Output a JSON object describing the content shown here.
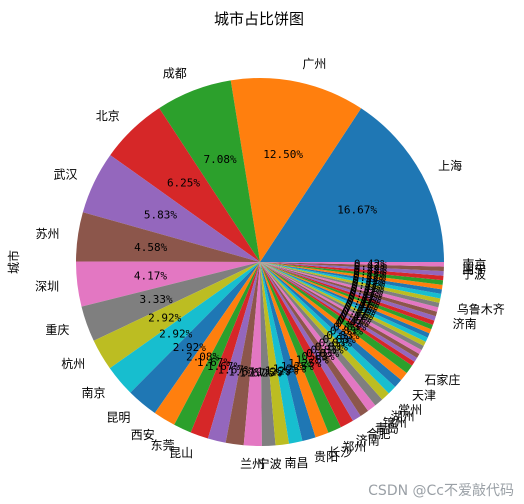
{
  "chart_data": {
    "type": "pie",
    "title": "城市占比饼图",
    "ylabel": "城市",
    "autopct_format": "%.2f%%",
    "start_angle_deg": 0,
    "direction": "counterclockwise",
    "slices": [
      {
        "label": "上海",
        "pct": 16.67,
        "color": "#1f77b4"
      },
      {
        "label": "广州",
        "pct": 12.5,
        "color": "#ff7f0e"
      },
      {
        "label": "成都",
        "pct": 7.08,
        "color": "#2ca02c"
      },
      {
        "label": "北京",
        "pct": 6.25,
        "color": "#d62728"
      },
      {
        "label": "武汉",
        "pct": 5.83,
        "color": "#9467bd"
      },
      {
        "label": "苏州",
        "pct": 4.58,
        "color": "#8c564b"
      },
      {
        "label": "深圳",
        "pct": 4.17,
        "color": "#e377c2"
      },
      {
        "label": "重庆",
        "pct": 3.33,
        "color": "#7f7f7f"
      },
      {
        "label": "杭州",
        "pct": 2.92,
        "color": "#bcbd22"
      },
      {
        "label": "南京",
        "pct": 2.92,
        "color": "#17becf"
      },
      {
        "label": "昆明",
        "pct": 2.92,
        "color": "#1f77b4"
      },
      {
        "label": "西安",
        "pct": 2.08,
        "color": "#ff7f0e"
      },
      {
        "label": "东莞",
        "pct": 1.67,
        "color": "#2ca02c"
      },
      {
        "label": "昆山",
        "pct": 1.67,
        "color": "#d62728"
      },
      {
        "label": "",
        "pct": 1.67,
        "color": "#9467bd"
      },
      {
        "label": "",
        "pct": 1.67,
        "color": "#8c564b"
      },
      {
        "label": "兰州",
        "pct": 1.67,
        "color": "#e377c2"
      },
      {
        "label": "宁波",
        "pct": 1.25,
        "color": "#7f7f7f"
      },
      {
        "label": "南昌",
        "pct": 1.25,
        "color": "#bcbd22"
      },
      {
        "label": "",
        "pct": 1.25,
        "color": "#17becf"
      },
      {
        "label": "贵阳",
        "pct": 1.25,
        "color": "#1f77b4"
      },
      {
        "label": "长沙",
        "pct": 1.25,
        "color": "#ff7f0e"
      },
      {
        "label": "郑州",
        "pct": 1.25,
        "color": "#2ca02c"
      },
      {
        "label": "济南",
        "pct": 1.25,
        "color": "#d62728"
      },
      {
        "label": "合肥",
        "pct": 0.83,
        "color": "#9467bd"
      },
      {
        "label": "青岛",
        "pct": 0.83,
        "color": "#8c564b"
      },
      {
        "label": "锦州",
        "pct": 0.83,
        "color": "#e377c2"
      },
      {
        "label": "湖州",
        "pct": 0.83,
        "color": "#7f7f7f"
      },
      {
        "label": "常州",
        "pct": 0.83,
        "color": "#bcbd22"
      },
      {
        "label": "",
        "pct": 0.83,
        "color": "#17becf"
      },
      {
        "label": "天津",
        "pct": 0.83,
        "color": "#1f77b4"
      },
      {
        "label": "",
        "pct": 0.83,
        "color": "#ff7f0e"
      },
      {
        "label": "石家庄",
        "pct": 0.83,
        "color": "#2ca02c"
      },
      {
        "label": "",
        "pct": 0.42,
        "color": "#d62728"
      },
      {
        "label": "",
        "pct": 0.42,
        "color": "#9467bd"
      },
      {
        "label": "",
        "pct": 0.42,
        "color": "#8c564b"
      },
      {
        "label": "",
        "pct": 0.42,
        "color": "#e377c2"
      },
      {
        "label": "",
        "pct": 0.42,
        "color": "#7f7f7f"
      },
      {
        "label": "",
        "pct": 0.42,
        "color": "#bcbd22"
      },
      {
        "label": "",
        "pct": 0.42,
        "color": "#17becf"
      },
      {
        "label": "",
        "pct": 0.42,
        "color": "#1f77b4"
      },
      {
        "label": "",
        "pct": 0.42,
        "color": "#ff7f0e"
      },
      {
        "label": "",
        "pct": 0.42,
        "color": "#2ca02c"
      },
      {
        "label": "",
        "pct": 0.42,
        "color": "#d62728"
      },
      {
        "label": "济南",
        "pct": 0.42,
        "color": "#9467bd"
      },
      {
        "label": "",
        "pct": 0.42,
        "color": "#8c564b"
      },
      {
        "label": "",
        "pct": 0.42,
        "color": "#e377c2"
      },
      {
        "label": "乌鲁木齐",
        "pct": 0.42,
        "color": "#7f7f7f"
      },
      {
        "label": "",
        "pct": 0.42,
        "color": "#bcbd22"
      },
      {
        "label": "",
        "pct": 0.42,
        "color": "#17becf"
      },
      {
        "label": "",
        "pct": 0.42,
        "color": "#1f77b4"
      },
      {
        "label": "",
        "pct": 0.42,
        "color": "#ff7f0e"
      },
      {
        "label": "",
        "pct": 0.42,
        "color": "#2ca02c"
      },
      {
        "label": "",
        "pct": 0.42,
        "color": "#d62728"
      },
      {
        "label": "宁波",
        "pct": 0.42,
        "color": "#9467bd"
      },
      {
        "label": "南宁",
        "pct": 0.42,
        "color": "#8c564b"
      },
      {
        "label": "南京",
        "pct": 0.42,
        "color": "#e377c2"
      }
    ]
  },
  "watermark": "CSDN @Cc不爱敲代码"
}
